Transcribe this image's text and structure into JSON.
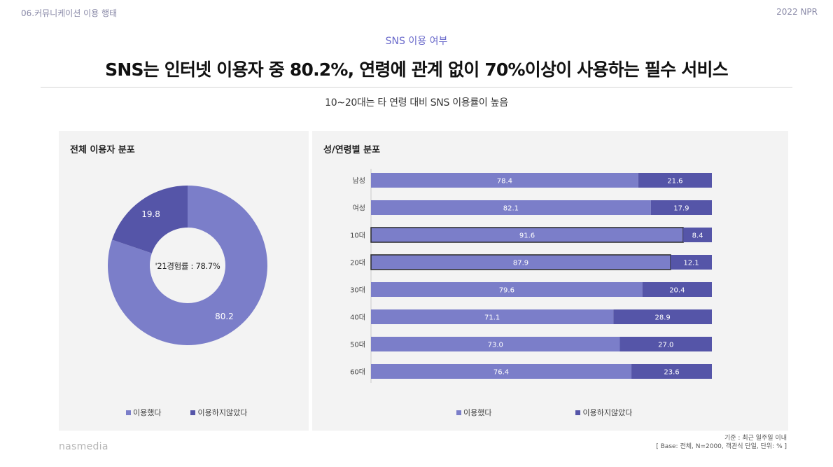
{
  "header": {
    "section": "06.커뮤니케이션 이용 행태",
    "year": "2022 NPR",
    "eyebrow": "SNS 이용 여부",
    "headline": "SNS는 인터넷 이용자 중 80.2%, 연령에 관계 없이 70%이상이 사용하는 필수 서비스",
    "subhead": "10~20대는 타 연령 대비 SNS 이용률이 높음"
  },
  "colors": {
    "used": "#7b7ec9",
    "not_used": "#5555a8",
    "panel_bg": "#f3f3f3"
  },
  "chart_data": [
    {
      "type": "pie",
      "title": "전체 이용자 분포",
      "donut": true,
      "center_label": "'21경험률 : 78.7%",
      "slices": [
        {
          "name": "이용했다",
          "value": 80.2,
          "label": "80.2"
        },
        {
          "name": "이용하지않았다",
          "value": 19.8,
          "label": "19.8"
        }
      ],
      "legend": [
        "이용했다",
        "이용하지않았다"
      ],
      "legend_position": "bottom"
    },
    {
      "type": "bar",
      "orientation": "horizontal",
      "stacked": true,
      "title": "성/연령별 분포",
      "categories": [
        "남성",
        "여성",
        "10대",
        "20대",
        "30대",
        "40대",
        "50대",
        "60대"
      ],
      "series": [
        {
          "name": "이용했다",
          "values": [
            78.4,
            82.1,
            91.6,
            87.9,
            79.6,
            71.1,
            73.0,
            76.4
          ],
          "labels": [
            "78.4",
            "82.1",
            "91.6",
            "87.9",
            "79.6",
            "71.1",
            "73.0",
            "76.4"
          ]
        },
        {
          "name": "이용하지않았다",
          "values": [
            21.6,
            17.9,
            8.4,
            12.1,
            20.4,
            28.9,
            27.0,
            23.6
          ],
          "labels": [
            "21.6",
            "17.9",
            "8.4",
            "12.1",
            "20.4",
            "28.9",
            "27.0",
            "23.6"
          ]
        }
      ],
      "highlighted": [
        "10대",
        "20대"
      ],
      "xlim": [
        0,
        100
      ],
      "legend": [
        "이용했다",
        "이용하지않았다"
      ],
      "legend_position": "bottom"
    }
  ],
  "footnote": {
    "line1": "기준 : 최근 일주일 이내",
    "line2": "[ Base: 전체, N=2000, 객관식 단일, 단위: % ]"
  },
  "brand": "nasmedia"
}
